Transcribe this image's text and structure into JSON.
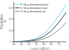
{
  "chart_data": {
    "type": "line",
    "xlabel": "Lnight (dB(A))",
    "ylabel": "Population\n%",
    "x": [
      40,
      45,
      50,
      55,
      60,
      65,
      70,
      75
    ],
    "series": [
      {
        "name": "% Very disturbed plane",
        "color": "#66ddee",
        "values": [
          0.2,
          0.5,
          1.2,
          3.0,
          7.0,
          14.0,
          23.0,
          33.0
        ]
      },
      {
        "name": "% Very disturbed road",
        "color": "#333333",
        "values": [
          0.1,
          0.3,
          0.8,
          2.0,
          4.5,
          9.5,
          17.0,
          26.0
        ]
      },
      {
        "name": "% Very disturbed rail",
        "color": "#778899",
        "values": [
          0.05,
          0.15,
          0.4,
          1.0,
          2.5,
          5.5,
          10.5,
          17.0
        ]
      }
    ],
    "xlim": [
      40,
      75
    ],
    "ylim": [
      0,
      35
    ],
    "xticks": [
      40,
      45,
      50,
      55,
      60,
      65,
      70
    ],
    "yticks": [
      0,
      10,
      20,
      30
    ],
    "grid": false,
    "legend": "upper left"
  }
}
